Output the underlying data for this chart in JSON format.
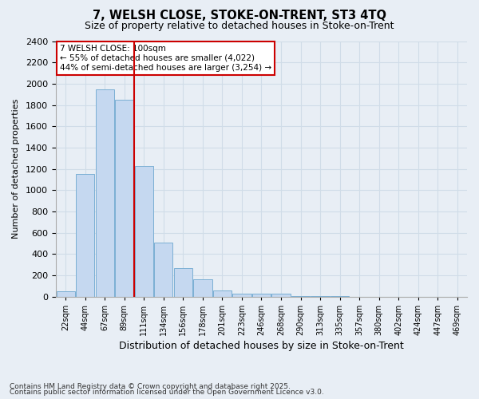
{
  "title": "7, WELSH CLOSE, STOKE-ON-TRENT, ST3 4TQ",
  "subtitle": "Size of property relative to detached houses in Stoke-on-Trent",
  "xlabel": "Distribution of detached houses by size in Stoke-on-Trent",
  "ylabel": "Number of detached properties",
  "ylim": [
    0,
    2400
  ],
  "bin_labels": [
    "22sqm",
    "44sqm",
    "67sqm",
    "89sqm",
    "111sqm",
    "134sqm",
    "156sqm",
    "178sqm",
    "201sqm",
    "223sqm",
    "246sqm",
    "268sqm",
    "290sqm",
    "313sqm",
    "335sqm",
    "357sqm",
    "380sqm",
    "402sqm",
    "424sqm",
    "447sqm",
    "469sqm"
  ],
  "bar_values": [
    50,
    1150,
    1950,
    1850,
    1230,
    510,
    270,
    160,
    60,
    30,
    30,
    30,
    5,
    3,
    2,
    1,
    1,
    0,
    0,
    0,
    0
  ],
  "bar_color": "#c5d8f0",
  "bar_edge_color": "#7bafd4",
  "property_label": "7 WELSH CLOSE: 100sqm",
  "annotation_line1": "← 55% of detached houses are smaller (4,022)",
  "annotation_line2": "44% of semi-detached houses are larger (3,254) →",
  "annotation_box_color": "#cc0000",
  "vline_color": "#cc0000",
  "vline_x": 3.5,
  "grid_color": "#d0dce8",
  "background_color": "#e8eef5",
  "footnote1": "Contains HM Land Registry data © Crown copyright and database right 2025.",
  "footnote2": "Contains public sector information licensed under the Open Government Licence v3.0."
}
